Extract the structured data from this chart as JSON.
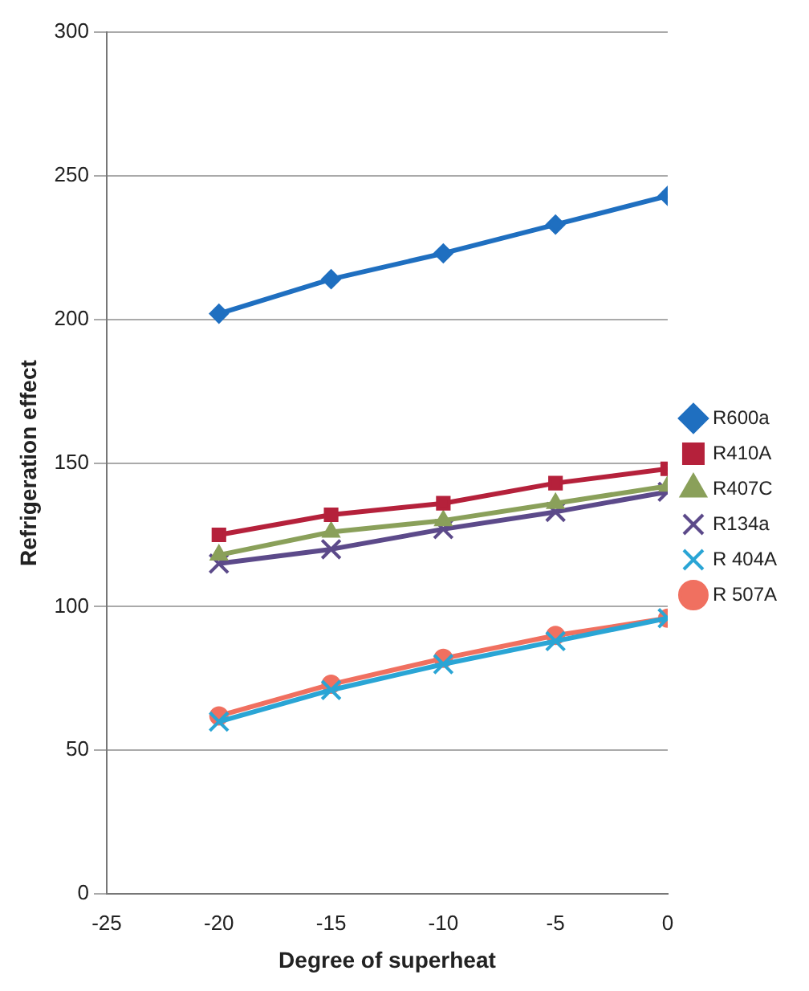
{
  "chart_data": {
    "type": "line",
    "xlabel": "Degree of superheat",
    "ylabel": "Refrigeration effect",
    "x": [
      -20,
      -15,
      -10,
      -5,
      0
    ],
    "xlim": [
      -25,
      0
    ],
    "xticks": [
      -25,
      -20,
      -15,
      -10,
      -5,
      0
    ],
    "ylim": [
      0,
      300
    ],
    "yticks": [
      0,
      50,
      100,
      150,
      200,
      250,
      300
    ],
    "grid": "y",
    "legend": "right",
    "series": [
      {
        "name": "R600a",
        "color": "#1f6fc0",
        "marker": "diamond",
        "values": [
          202,
          214,
          223,
          233,
          243
        ]
      },
      {
        "name": "R410A",
        "color": "#b5213b",
        "marker": "square",
        "values": [
          125,
          132,
          136,
          143,
          148
        ]
      },
      {
        "name": "R407C",
        "color": "#8aa05a",
        "marker": "triangle",
        "values": [
          118,
          126,
          130,
          136,
          142
        ]
      },
      {
        "name": "R134a",
        "color": "#5c4a8a",
        "marker": "cross",
        "values": [
          115,
          120,
          127,
          133,
          140
        ]
      },
      {
        "name": "R 404A",
        "color": "#2aa5d5",
        "marker": "cross",
        "values": [
          60,
          71,
          80,
          88,
          96
        ]
      },
      {
        "name": "R 507A",
        "color": "#f07060",
        "marker": "circle",
        "values": [
          62,
          73,
          82,
          90,
          96
        ]
      }
    ]
  }
}
